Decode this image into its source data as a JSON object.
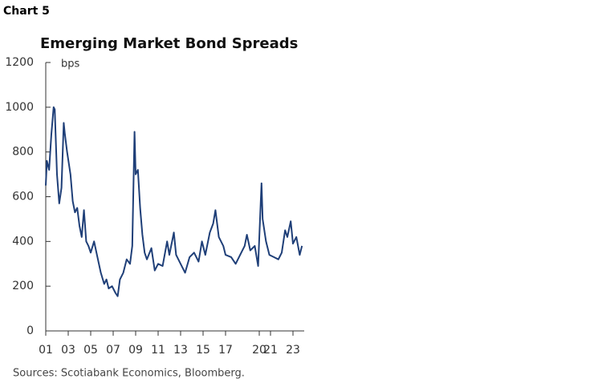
{
  "page_label": "Chart 5",
  "chart_data": {
    "type": "line",
    "title": "Emerging Market Bond Spreads",
    "y_label": "bps",
    "source": "Sources: Scotiabank Economics, Bloomberg.",
    "x": [
      2001.0,
      2001.1,
      2001.3,
      2001.5,
      2001.7,
      2001.8,
      2002.0,
      2002.2,
      2002.4,
      2002.6,
      2002.7,
      2002.9,
      2003.2,
      2003.4,
      2003.6,
      2003.8,
      2004.0,
      2004.2,
      2004.4,
      2004.6,
      2004.8,
      2005.0,
      2005.3,
      2005.6,
      2005.9,
      2006.2,
      2006.4,
      2006.6,
      2006.9,
      2007.2,
      2007.4,
      2007.6,
      2007.9,
      2008.2,
      2008.5,
      2008.7,
      2008.9,
      2009.0,
      2009.2,
      2009.4,
      2009.6,
      2009.8,
      2010.0,
      2010.4,
      2010.7,
      2011.0,
      2011.4,
      2011.8,
      2012.0,
      2012.4,
      2012.6,
      2013.0,
      2013.4,
      2013.8,
      2014.2,
      2014.6,
      2014.9,
      2015.2,
      2015.6,
      2015.9,
      2016.1,
      2016.4,
      2016.8,
      2017.0,
      2017.5,
      2017.9,
      2018.3,
      2018.7,
      2018.9,
      2019.2,
      2019.6,
      2019.9,
      2020.2,
      2020.3,
      2020.6,
      2020.9,
      2021.3,
      2021.7,
      2022.0,
      2022.3,
      2022.5,
      2022.8,
      2023.0,
      2023.3,
      2023.6,
      2023.8
    ],
    "series": [
      {
        "name": "EM bond spreads",
        "color": "#1f3f78",
        "values": [
          650,
          760,
          720,
          880,
          1000,
          990,
          700,
          570,
          640,
          930,
          880,
          800,
          700,
          580,
          530,
          550,
          470,
          420,
          540,
          400,
          380,
          350,
          400,
          330,
          260,
          210,
          230,
          190,
          200,
          170,
          155,
          230,
          260,
          320,
          300,
          380,
          890,
          700,
          720,
          550,
          430,
          350,
          320,
          370,
          270,
          300,
          290,
          400,
          340,
          440,
          340,
          300,
          260,
          330,
          350,
          310,
          400,
          340,
          440,
          480,
          540,
          420,
          380,
          340,
          330,
          300,
          340,
          380,
          430,
          360,
          380,
          290,
          660,
          500,
          400,
          340,
          330,
          320,
          350,
          450,
          420,
          490,
          390,
          420,
          340,
          380
        ]
      }
    ],
    "xlim": [
      2001,
      2024
    ],
    "xticks": [
      {
        "value": 2001,
        "label": "01"
      },
      {
        "value": 2003,
        "label": "03"
      },
      {
        "value": 2005,
        "label": "05"
      },
      {
        "value": 2007,
        "label": "07"
      },
      {
        "value": 2009,
        "label": "09"
      },
      {
        "value": 2011,
        "label": "11"
      },
      {
        "value": 2013,
        "label": "13"
      },
      {
        "value": 2015,
        "label": "15"
      },
      {
        "value": 2017,
        "label": "17"
      },
      {
        "value": 2020,
        "label": "20"
      },
      {
        "value": 2021,
        "label": "21"
      },
      {
        "value": 2023,
        "label": "23"
      }
    ],
    "ylim": [
      0,
      1200
    ],
    "yticks": [
      0,
      200,
      400,
      600,
      800,
      1000,
      1200
    ]
  }
}
